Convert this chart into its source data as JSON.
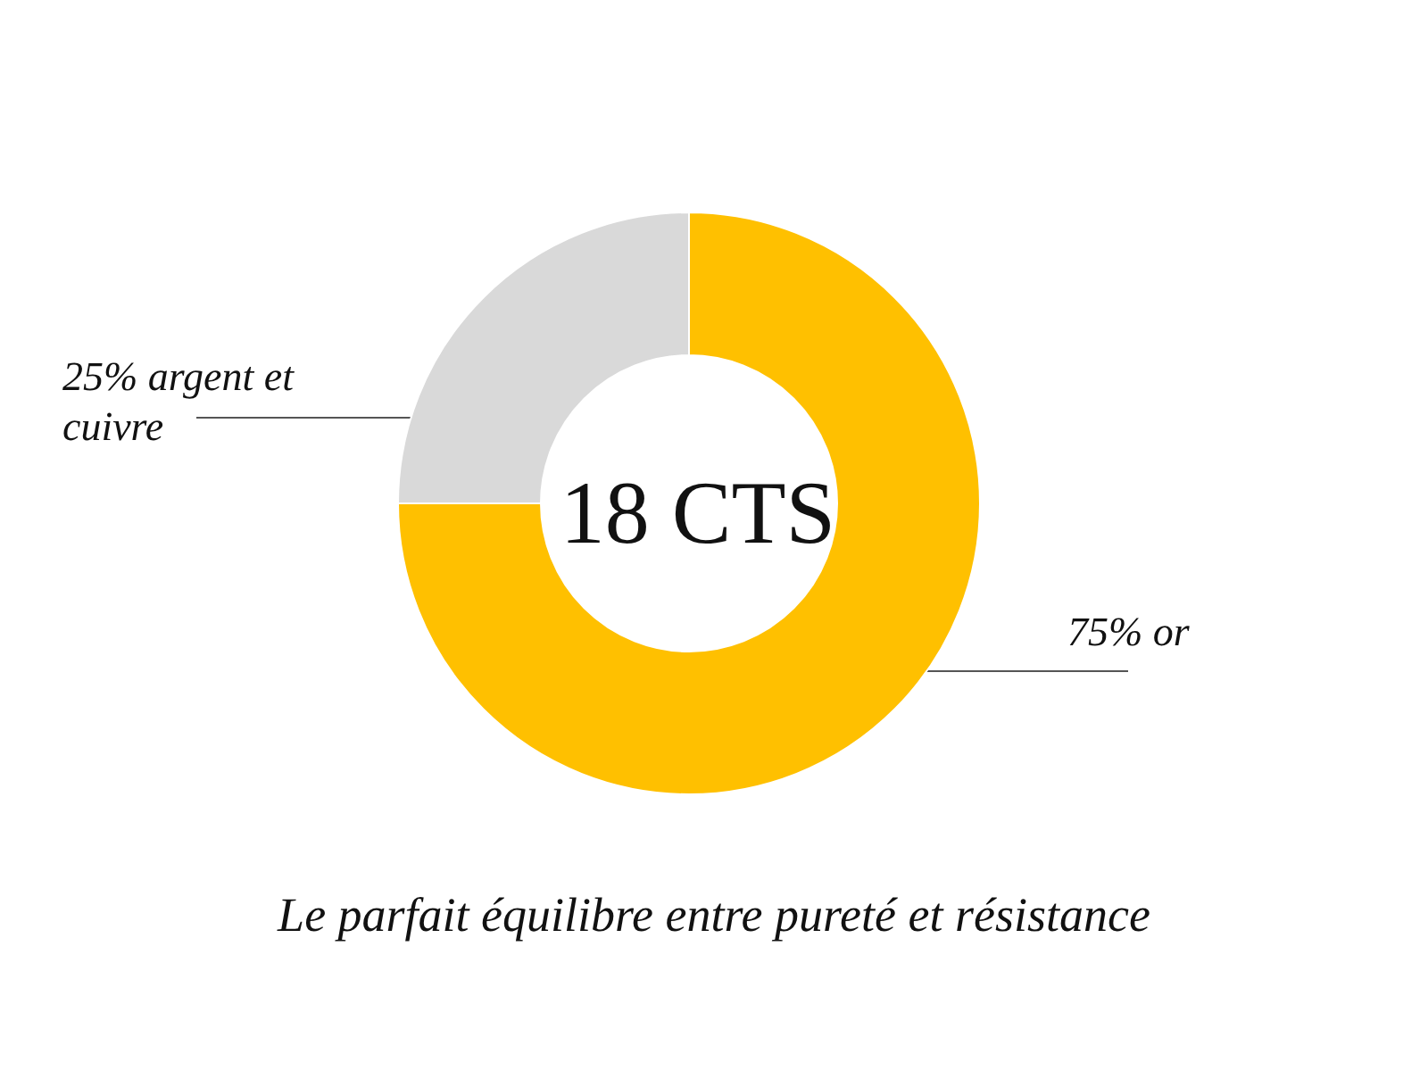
{
  "chart_data": {
    "type": "donut",
    "title": "18 CTS",
    "categories": [
      "or",
      "argent et cuivre"
    ],
    "values": [
      75,
      25
    ],
    "colors": [
      "#ffc000",
      "#d9d9d9"
    ],
    "value_labels": [
      "75%",
      "25%"
    ],
    "annotations": [
      "Le parfait équilibre entre pureté et résistance"
    ],
    "legend": false
  }
}
